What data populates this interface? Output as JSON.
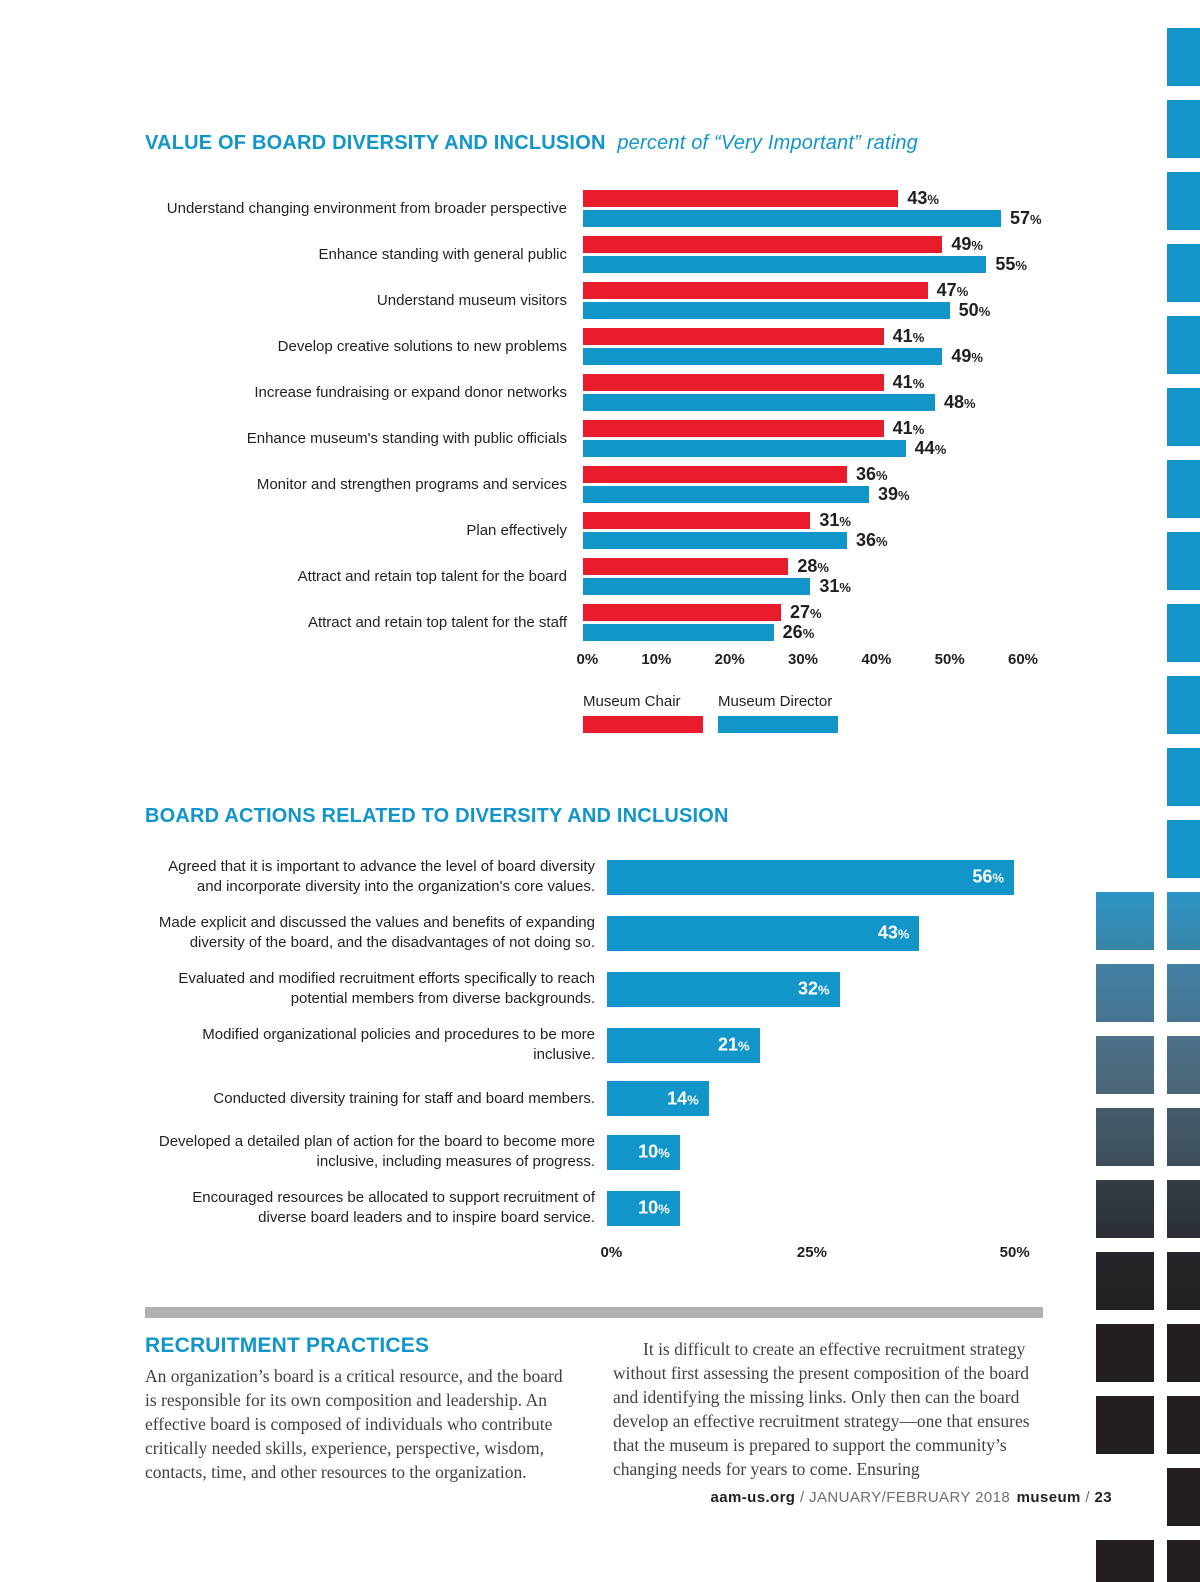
{
  "chart_data": [
    {
      "type": "bar",
      "orientation": "horizontal",
      "title": "VALUE OF BOARD DIVERSITY AND INCLUSION",
      "subtitle": "percent of “Very Important” rating",
      "categories": [
        "Understand changing environment from broader perspective",
        "Enhance standing with general public",
        "Understand museum visitors",
        "Develop creative solutions to new problems",
        "Increase fundraising or expand donor networks",
        "Enhance museum's standing with public officials",
        "Monitor and strengthen programs and services",
        "Plan effectively",
        "Attract and retain top talent for the board",
        "Attract and retain top talent for the staff"
      ],
      "series": [
        {
          "name": "Museum Chair",
          "color": "#e81c2b",
          "values": [
            43,
            49,
            47,
            41,
            41,
            41,
            36,
            31,
            28,
            27
          ]
        },
        {
          "name": "Museum Director",
          "color": "#1295c8",
          "values": [
            57,
            55,
            50,
            49,
            48,
            44,
            39,
            36,
            31,
            26
          ]
        }
      ],
      "xlim": [
        0,
        60
      ],
      "x_ticks": [
        "0%",
        "10%",
        "20%",
        "30%",
        "40%",
        "50%",
        "60%"
      ],
      "value_suffix": "%",
      "grid": false,
      "legend_position": "bottom-left"
    },
    {
      "type": "bar",
      "orientation": "horizontal",
      "title": "BOARD ACTIONS RELATED TO DIVERSITY AND INCLUSION",
      "categories": [
        "Agreed that it is important to advance the level of board diversity and incorporate diversity into the organization's core values.",
        "Made explicit and discussed the values and benefits of expanding diversity of the board, and the disadvantages of not doing so.",
        "Evaluated and modified recruitment efforts specifically to reach potential members from diverse backgrounds.",
        "Modified organizational policies and procedures to be more inclusive.",
        "Conducted diversity training for staff and board members.",
        "Developed a detailed plan of action for the board to become more inclusive, including measures of progress.",
        "Encouraged resources be allocated to support recruitment of diverse board leaders and to inspire board service."
      ],
      "values": [
        56,
        43,
        32,
        21,
        14,
        10,
        10
      ],
      "bar_color": "#1295c8",
      "xlim": [
        0,
        60
      ],
      "x_ticks": [
        "0%",
        "25%",
        "50%"
      ],
      "value_suffix": "%",
      "grid": false
    }
  ],
  "articles": {
    "left": {
      "heading": "RECRUITMENT PRACTICES",
      "body": "An organization’s board is a critical resource, and the board is responsible for its own composition and leadership. An effective board is composed of individuals who contribute critically needed skills, experience, perspective, wisdom, contacts, time, and other resources to the organization."
    },
    "right": {
      "body": "It is difficult to create an effective recruitment strategy without first assessing the present composition of the board and identifying the missing links. Only then can the board develop an effective recruitment strategy—one that ensures that the museum is prepared to support the community’s changing needs for years to come. Ensuring"
    }
  },
  "footer": {
    "site": "aam-us.org",
    "sep1": "/",
    "issue": "JANUARY/FEBRUARY 2018",
    "brand": "museum",
    "sep2": "/",
    "page_number": "23"
  },
  "colors": {
    "accent_blue": "#1295c8",
    "accent_red": "#e81c2b",
    "divider_gray": "#b1b1b3",
    "text_dark": "#231f20",
    "body_text": "#414042",
    "footer_gray": "#6d6e71"
  },
  "decor": {
    "square_size": {
      "w_edge": 33,
      "w_inner": 58,
      "h": 58
    },
    "columns": {
      "edge_x": 1167,
      "inner_x": 1096
    },
    "start_y": 28,
    "period": 72,
    "rows": 22,
    "inner_start_row": 12,
    "inner_skip_rows": [
      20
    ],
    "colors": [
      {
        "top": "#1294c7",
        "bottom": "#1294c7"
      },
      {
        "top": "#1294c7",
        "bottom": "#1294c7"
      },
      {
        "top": "#1294c7",
        "bottom": "#1294c7"
      },
      {
        "top": "#1294c7",
        "bottom": "#1294c7"
      },
      {
        "top": "#1294c7",
        "bottom": "#1294c7"
      },
      {
        "top": "#1294c7",
        "bottom": "#1294c7"
      },
      {
        "top": "#1294c7",
        "bottom": "#1294c7"
      },
      {
        "top": "#1294c7",
        "bottom": "#1294c7"
      },
      {
        "top": "#1294c7",
        "bottom": "#1294c7"
      },
      {
        "top": "#1294c7",
        "bottom": "#1294c7"
      },
      {
        "top": "#1294c7",
        "bottom": "#1294c7"
      },
      {
        "top": "#1294c7",
        "bottom": "#1294c7"
      },
      {
        "top": "#2d94c5",
        "bottom": "#3884a8"
      },
      {
        "top": "#4380a3",
        "bottom": "#457590"
      },
      {
        "top": "#4d7289",
        "bottom": "#4b6577"
      },
      {
        "top": "#465c6b",
        "bottom": "#3c4e5a"
      },
      {
        "top": "#343c45",
        "bottom": "#2b2f35"
      },
      {
        "top": "#26252a",
        "bottom": "#232021"
      },
      {
        "top": "#231f20",
        "bottom": "#231f20"
      },
      {
        "top": "#231f20",
        "bottom": "#231f20"
      },
      {
        "top": "#231f20",
        "bottom": "#231f20"
      },
      {
        "top": "#231f20",
        "bottom": "#231f20"
      }
    ]
  }
}
